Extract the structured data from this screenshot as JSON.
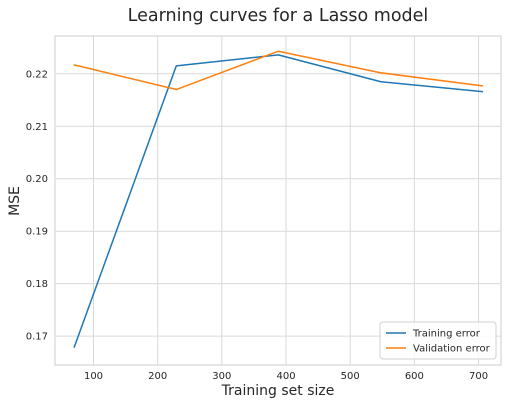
{
  "chart_data": {
    "type": "line",
    "title": "Learning curves for a Lasso model",
    "xlabel": "Training set size",
    "ylabel": "MSE",
    "xlim": [
      40,
      735
    ],
    "ylim": [
      0.1645,
      0.2272
    ],
    "xticks": [
      100,
      200,
      300,
      400,
      500,
      600,
      700
    ],
    "yticks": [
      0.17,
      0.18,
      0.19,
      0.2,
      0.21,
      0.22
    ],
    "ytick_labels": [
      "0.17",
      "0.18",
      "0.19",
      "0.20",
      "0.21",
      "0.22"
    ],
    "grid": true,
    "legend": "lower-right",
    "x": [
      70,
      229,
      388,
      547,
      706
    ],
    "series": [
      {
        "name": "Training error",
        "color": "#1f77b4",
        "values": [
          0.1679,
          0.2215,
          0.2236,
          0.2185,
          0.2166
        ]
      },
      {
        "name": "Validation error",
        "color": "#ff7f0e",
        "values": [
          0.2217,
          0.217,
          0.2243,
          0.2202,
          0.2177
        ]
      }
    ]
  }
}
